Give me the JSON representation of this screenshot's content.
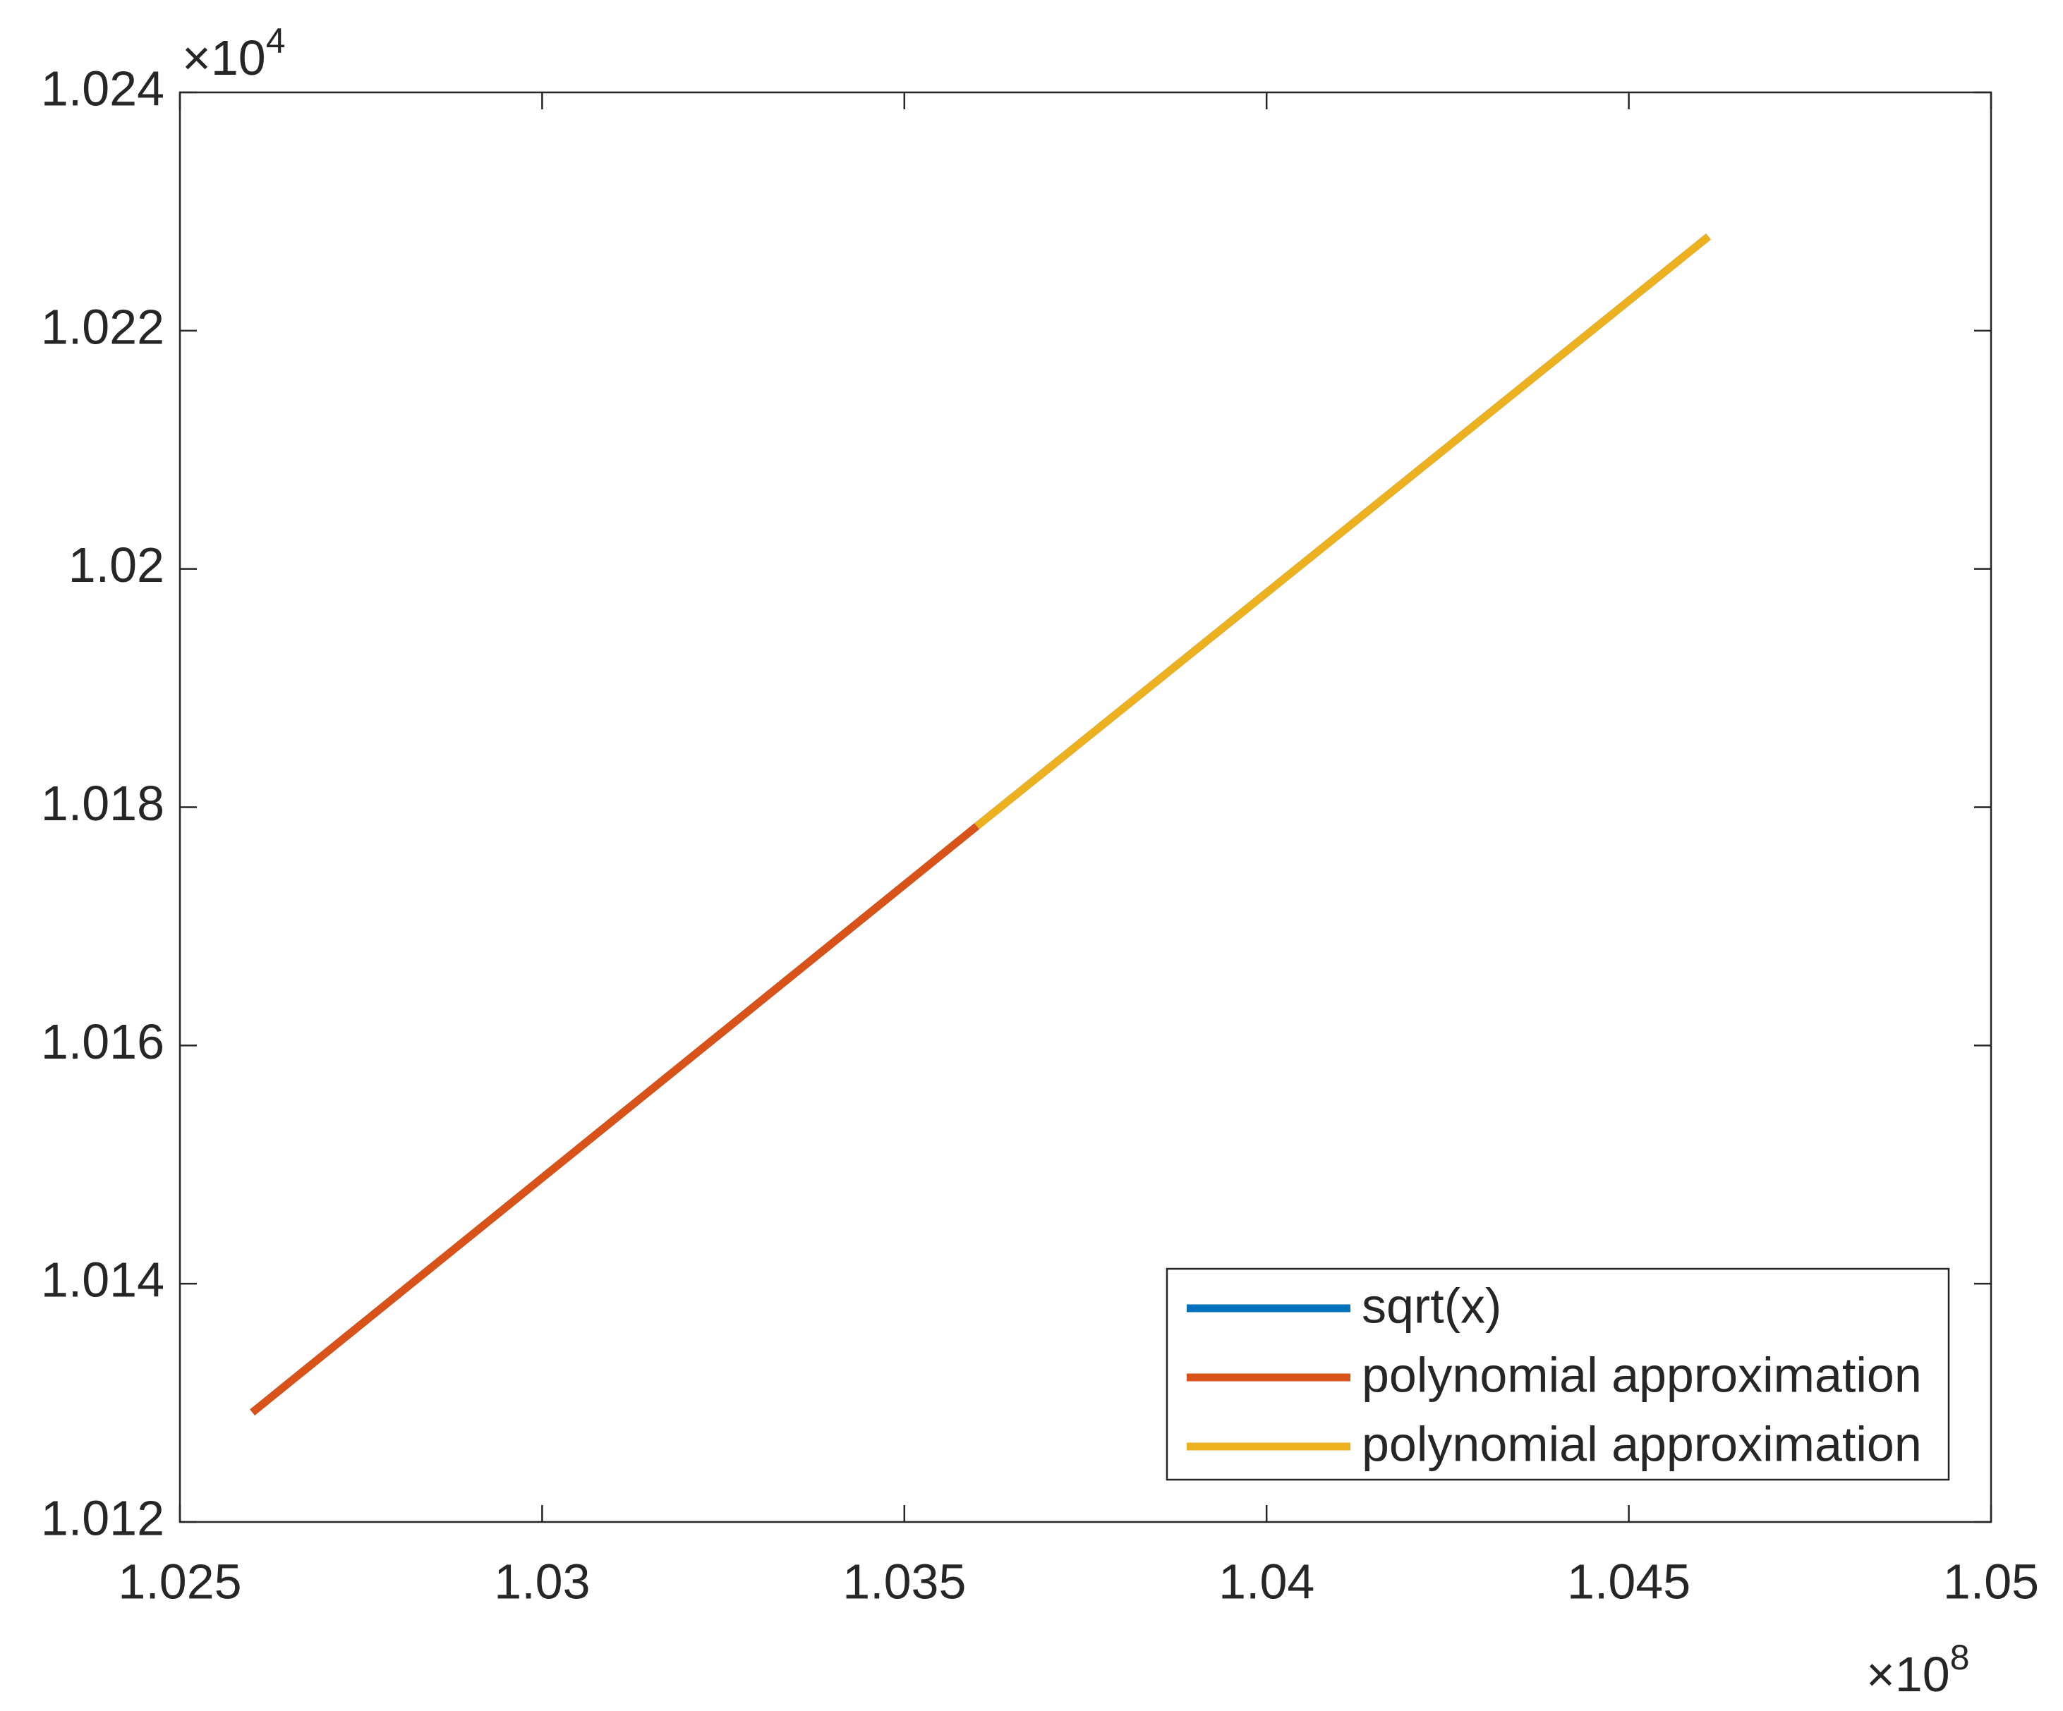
{
  "chart_data": {
    "type": "line",
    "x": [
      1.026,
      1.031,
      1.036,
      1.041,
      1.0461
    ],
    "series": [
      {
        "name": "sqrt(x)",
        "color": "#0072bd",
        "values": [
          1.01292,
          1.01538,
          1.01784,
          1.02029,
          1.02279
        ]
      },
      {
        "name": "polynomial approximation",
        "color": "#d95319",
        "values": [
          1.01292,
          1.01538,
          1.01784,
          null,
          null
        ]
      },
      {
        "name": "polynomial approximation",
        "color": "#edb120",
        "values": [
          null,
          null,
          1.01784,
          1.02029,
          1.02279
        ]
      }
    ],
    "xlim": [
      1.025,
      1.05
    ],
    "xticks": [
      1.025,
      1.03,
      1.035,
      1.04,
      1.045,
      1.05
    ],
    "ylim": [
      1.012,
      1.024
    ],
    "yticks": [
      1.012,
      1.014,
      1.016,
      1.018,
      1.02,
      1.022,
      1.024
    ],
    "x_multiplier": "×10",
    "x_exponent": "8",
    "y_multiplier": "×10",
    "y_exponent": "4",
    "legend": "southeast",
    "grid": false
  }
}
